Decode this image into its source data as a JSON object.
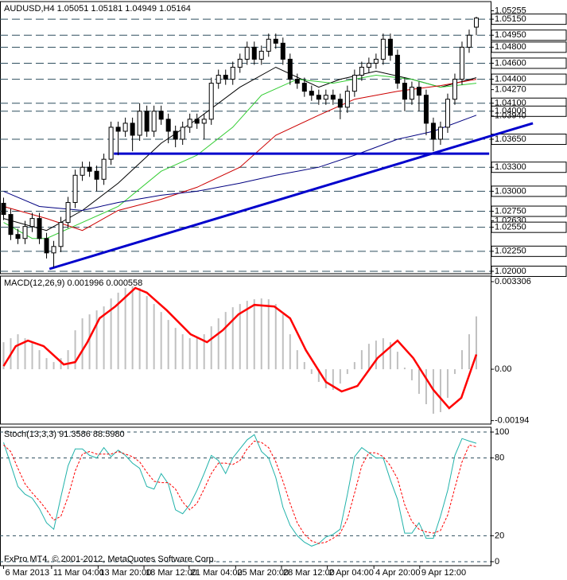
{
  "chart_data": [
    {
      "type": "candlestick",
      "title": "AUDUSD,H4 1.05051 1.05181 1.04949 1.05164",
      "open": [
        1.0285,
        1.0271,
        1.0246,
        1.0241,
        1.0256,
        1.0266,
        1.0241,
        1.0223,
        1.0231,
        1.0261,
        1.0286,
        1.032,
        1.033,
        1.0325,
        1.0315,
        1.034,
        1.038,
        1.0375,
        1.0385,
        1.037,
        1.04,
        1.0375,
        1.04,
        1.039,
        1.0375,
        1.0365,
        1.038,
        1.039,
        1.0385,
        1.039,
        1.0435,
        1.0445,
        1.044,
        1.0455,
        1.0465,
        1.048,
        1.0465,
        1.0475,
        1.049,
        1.0485,
        1.0465,
        1.044,
        1.0435,
        1.0425,
        1.042,
        1.0415,
        1.042,
        1.0415,
        1.0405,
        1.0425,
        1.0445,
        1.0455,
        1.046,
        1.0465,
        1.049,
        1.047,
        1.0435,
        1.0415,
        1.043,
        1.042,
        1.0385,
        1.0365,
        1.038,
        1.0415,
        1.044,
        1.048,
        1.05051
      ],
      "high": [
        1.0292,
        1.0278,
        1.0253,
        1.0263,
        1.0273,
        1.0273,
        1.0248,
        1.0238,
        1.0268,
        1.0293,
        1.0327,
        1.0337,
        1.0337,
        1.0332,
        1.0347,
        1.0387,
        1.0387,
        1.0392,
        1.0392,
        1.041,
        1.0407,
        1.0407,
        1.0407,
        1.0397,
        1.0382,
        1.0387,
        1.0397,
        1.0397,
        1.0397,
        1.0442,
        1.0452,
        1.0452,
        1.0462,
        1.0472,
        1.0487,
        1.0487,
        1.0482,
        1.0497,
        1.0497,
        1.0492,
        1.0472,
        1.0447,
        1.0442,
        1.0432,
        1.0427,
        1.0427,
        1.0427,
        1.0422,
        1.0432,
        1.0452,
        1.0462,
        1.0467,
        1.0472,
        1.0497,
        1.0497,
        1.0477,
        1.0442,
        1.0437,
        1.0437,
        1.0427,
        1.0392,
        1.0387,
        1.0422,
        1.0447,
        1.0487,
        1.0502,
        1.05181
      ],
      "low": [
        1.0264,
        1.0239,
        1.0234,
        1.0234,
        1.0249,
        1.0234,
        1.0216,
        1.0205,
        1.0224,
        1.0254,
        1.0279,
        1.0313,
        1.0318,
        1.03,
        1.0308,
        1.0333,
        1.0345,
        1.0368,
        1.035,
        1.0363,
        1.0368,
        1.0368,
        1.0383,
        1.036,
        1.0355,
        1.0358,
        1.0373,
        1.0378,
        1.0365,
        1.0383,
        1.0428,
        1.0433,
        1.0433,
        1.0448,
        1.0458,
        1.0458,
        1.0458,
        1.0468,
        1.0478,
        1.0458,
        1.0433,
        1.0428,
        1.0418,
        1.0413,
        1.0408,
        1.0408,
        1.0408,
        1.039,
        1.0398,
        1.0418,
        1.0438,
        1.0448,
        1.0453,
        1.0458,
        1.0463,
        1.0428,
        1.04,
        1.0408,
        1.04,
        1.037,
        1.035,
        1.0358,
        1.0373,
        1.0408,
        1.0433,
        1.0473,
        1.04949
      ],
      "close": [
        1.0271,
        1.0246,
        1.0241,
        1.0256,
        1.0266,
        1.0241,
        1.0223,
        1.0231,
        1.0261,
        1.0286,
        1.032,
        1.033,
        1.0325,
        1.0315,
        1.034,
        1.038,
        1.0375,
        1.0385,
        1.037,
        1.04,
        1.0375,
        1.04,
        1.039,
        1.0375,
        1.0365,
        1.038,
        1.039,
        1.0385,
        1.039,
        1.0435,
        1.0445,
        1.044,
        1.0455,
        1.0465,
        1.048,
        1.0465,
        1.0475,
        1.049,
        1.0485,
        1.0465,
        1.044,
        1.0435,
        1.0425,
        1.042,
        1.0415,
        1.042,
        1.0415,
        1.0405,
        1.0425,
        1.0445,
        1.0455,
        1.046,
        1.0465,
        1.049,
        1.047,
        1.0435,
        1.0415,
        1.043,
        1.042,
        1.0385,
        1.0365,
        1.038,
        1.0415,
        1.044,
        1.048,
        1.0495,
        1.05164
      ],
      "up_color": "#ffffff",
      "down_color": "#000000",
      "overlays": [
        {
          "color": "#000000",
          "x": [
            0,
            6,
            11,
            16,
            22,
            27,
            33,
            38,
            44,
            47,
            52,
            57,
            61,
            66
          ],
          "values": [
            1.0266,
            1.0251,
            1.0276,
            1.031,
            1.036,
            1.039,
            1.043,
            1.0455,
            1.043,
            1.044,
            1.045,
            1.044,
            1.043,
            1.0442
          ]
        },
        {
          "color": "#32cd32",
          "x": [
            0,
            4,
            6,
            11,
            16,
            22,
            27,
            32,
            36,
            41,
            46,
            52,
            57,
            61,
            66
          ],
          "values": [
            1.0261,
            1.0241,
            1.0241,
            1.0261,
            1.0281,
            1.0325,
            1.0345,
            1.038,
            1.042,
            1.044,
            1.0435,
            1.0445,
            1.044,
            1.043,
            1.0435
          ]
        },
        {
          "color": "#cc0000",
          "x": [
            0,
            6,
            11,
            16,
            22,
            27,
            33,
            38,
            44,
            49,
            55,
            61,
            66
          ],
          "values": [
            1.0281,
            1.0266,
            1.0251,
            1.0276,
            1.029,
            1.0305,
            1.033,
            1.037,
            1.0395,
            1.0415,
            1.0425,
            1.0432,
            1.044
          ]
        },
        {
          "color": "#000080",
          "x": [
            0,
            5,
            11,
            16,
            22,
            27,
            33,
            38,
            44,
            49,
            55,
            60,
            66
          ],
          "values": [
            1.03,
            1.0281,
            1.0276,
            1.0286,
            1.0295,
            1.03,
            1.031,
            1.032,
            1.033,
            1.0345,
            1.0365,
            1.0375,
            1.0395
          ]
        }
      ],
      "trendlines": [
        {
          "color": "#0000cc",
          "x": [
            15.4,
            67.8
          ],
          "values": [
            1.0347,
            1.0347
          ]
        },
        {
          "color": "#0000cc",
          "x": [
            6.4,
            73.9
          ],
          "values": [
            1.0203,
            1.0385
          ]
        }
      ],
      "xlim": [
        -0.5,
        68
      ],
      "xticks": [
        {
          "value": 0,
          "label": "6 Mar 2013"
        },
        {
          "value": 6.7,
          "label": "11 Mar 04:00"
        },
        {
          "value": 13.2,
          "label": "13 Mar 20:00"
        },
        {
          "value": 19.6,
          "label": "18 Mar 12:00"
        },
        {
          "value": 25.9,
          "label": "21 Mar 04:00"
        },
        {
          "value": 32.4,
          "label": "25 Mar 20:00"
        },
        {
          "value": 38.8,
          "label": "28 Mar 12:00"
        },
        {
          "value": 45.2,
          "label": "2 Apr 04:00"
        },
        {
          "value": 51.7,
          "label": "4 Apr 20:00"
        },
        {
          "value": 58.1,
          "label": "9 Apr 12:00"
        }
      ],
      "ylim": [
        1.0197,
        1.0537
      ],
      "yticks": [
        1.05255,
        {
          "value": 1.0515,
          "label": "1.05150",
          "boxed": true
        },
        {
          "value": 1.0495,
          "label": "1.04950",
          "boxed": true
        },
        {
          "value": 1.048,
          "label": "1.04800",
          "boxed": true
        },
        {
          "value": 1.046,
          "label": "1.04600",
          "boxed": true
        },
        {
          "value": 1.044,
          "label": "1.04400",
          "boxed": true
        },
        {
          "value": 1.0427,
          "label": "1.04270"
        },
        {
          "value": 1.041,
          "label": "1.04100",
          "boxed": true
        },
        {
          "value": 1.04,
          "label": "1.04000",
          "boxed": true
        },
        {
          "value": 1.0394,
          "label": "1.03940"
        },
        {
          "value": 1.0365,
          "label": "1.03650",
          "boxed": true
        },
        {
          "value": 1.033,
          "label": "1.03300",
          "boxed": true
        },
        {
          "value": 1.03,
          "label": "1.03000",
          "boxed": true
        },
        {
          "value": 1.0275,
          "label": "1.02750",
          "boxed": true
        },
        {
          "value": 1.0263,
          "label": "1.02630"
        },
        {
          "value": 1.0255,
          "label": "1.02550",
          "boxed": true
        },
        {
          "value": 1.0225,
          "label": "1.02250",
          "boxed": true
        },
        {
          "value": 1.02,
          "label": "1.02000",
          "boxed": true
        }
      ],
      "grid": false
    },
    {
      "type": "macd",
      "title": "MACD(12,26,9) 0.001996 0.000558",
      "series": [
        {
          "color": "#c0c0c0",
          "values": [
            0.00102,
            0.00117,
            0.00132,
            0.00117,
            0.00102,
            0.00072,
            0.00042,
            0.00027,
            0.00042,
            0.00072,
            0.00147,
            0.00192,
            0.00207,
            0.00222,
            0.00237,
            0.00267,
            0.00289,
            0.00307,
            0.00313,
            0.00307,
            0.00276,
            0.00246,
            0.00216,
            0.00186,
            0.00156,
            0.00132,
            0.00117,
            0.00117,
            0.00132,
            0.00162,
            0.00192,
            0.00216,
            0.00234,
            0.00246,
            0.00258,
            0.00264,
            0.00267,
            0.00264,
            0.00246,
            0.00207,
            0.00132,
            0.00072,
            0.00027,
            -0.00018,
            -0.00048,
            -0.00072,
            -0.00078,
            -0.00054,
            -0.00018,
            0.00027,
            0.00072,
            0.00096,
            0.00108,
            0.00117,
            0.00102,
            0.00066,
            6e-05,
            -0.00042,
            -0.00093,
            -0.00132,
            -0.00168,
            -0.00162,
            -0.00108,
            -0.00018,
            0.00072,
            0.00132,
            0.001996
          ]
        },
        {
          "color": "#ff0000",
          "x": [
            0,
            1.7,
            3.4,
            5.6,
            8.4,
            10,
            11.7,
            13.4,
            15.6,
            18.4,
            20,
            22.8,
            26.1,
            28.4,
            30.6,
            32.8,
            35,
            37.8,
            40,
            42.2,
            45,
            47.2,
            49.4,
            52.2,
            55,
            57.2,
            60,
            62.2,
            63.9,
            66
          ],
          "values": [
            0.00012,
            0.00087,
            0.00108,
            0.00087,
            0.00018,
            0.00027,
            0.00102,
            0.00192,
            0.00237,
            0.00307,
            0.00289,
            0.00222,
            0.00132,
            0.00102,
            0.00147,
            0.00207,
            0.00243,
            0.00237,
            0.00192,
            0.00072,
            -0.00048,
            -0.00084,
            -0.00063,
            0.00042,
            0.00108,
            0.00042,
            -0.00078,
            -0.00147,
            -0.00108,
            0.000558
          ]
        }
      ],
      "ylim": [
        -0.00207,
        0.003516
      ],
      "yticks": [
        0.003306,
        {
          "value": 0,
          "label": "0.00"
        },
        -0.00194
      ],
      "grid": false
    },
    {
      "type": "stochastic",
      "title": "Stoch(13,3,3) 91.3586 88.5980",
      "series": [
        {
          "color": "#20b2aa",
          "values": [
            92,
            75,
            58,
            52,
            49,
            41,
            30,
            25,
            50,
            74,
            87,
            87,
            82,
            80,
            88,
            81,
            86,
            82,
            76,
            72,
            58,
            56,
            68,
            60,
            40,
            37,
            44,
            55,
            68,
            82,
            78,
            68,
            80,
            87,
            94,
            98,
            85,
            80,
            65,
            42,
            28,
            20,
            15,
            12,
            14,
            19,
            21,
            25,
            52,
            81,
            88,
            84,
            80,
            80,
            63,
            48,
            22,
            22,
            30,
            18,
            18,
            35,
            55,
            82,
            95,
            93,
            91.3586
          ]
        },
        {
          "color": "#ff0000",
          "dashed": true,
          "values": [
            90,
            85,
            72,
            60,
            53,
            47,
            40,
            32,
            35,
            50,
            70,
            83,
            85,
            83,
            83,
            83,
            85,
            83,
            81,
            77,
            69,
            62,
            61,
            61,
            56,
            46,
            40,
            45,
            56,
            68,
            76,
            76,
            75,
            78,
            87,
            93,
            92,
            88,
            77,
            62,
            45,
            30,
            21,
            16,
            14,
            15,
            18,
            22,
            33,
            53,
            74,
            84,
            84,
            81,
            74,
            64,
            44,
            31,
            25,
            23,
            22,
            24,
            36,
            57,
            77,
            90,
            88.598
          ]
        }
      ],
      "ylim": [
        -3.1,
        103.7
      ],
      "yticks": [
        100,
        80,
        20,
        0
      ],
      "grid": true,
      "annotation": "FxPro MT4, © 2001-2012, MetaQuotes Software Corp."
    }
  ]
}
